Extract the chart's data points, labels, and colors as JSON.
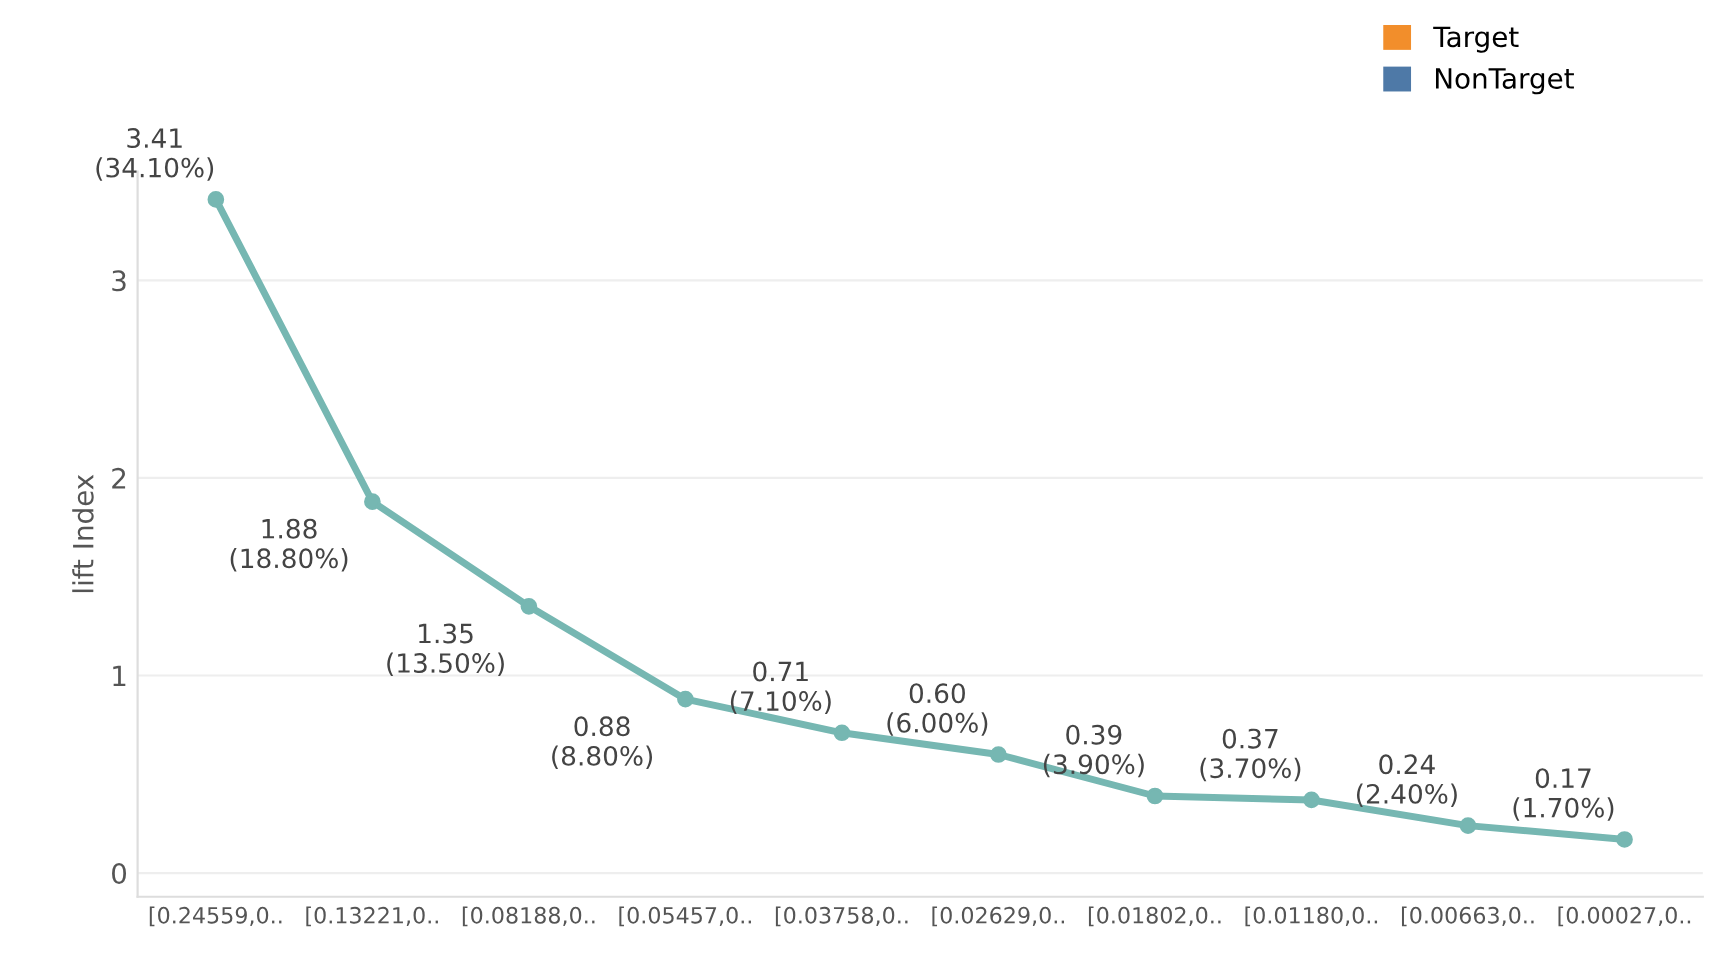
{
  "chart_data": {
    "type": "line",
    "ylabel": "lift Index",
    "categories": [
      "[0.24559,0..",
      "[0.13221,0..",
      "[0.08188,0..",
      "[0.05457,0..",
      "[0.03758,0..",
      "[0.02629,0..",
      "[0.01802,0..",
      "[0.01180,0..",
      "[0.00663,0..",
      "[0.00027,0.."
    ],
    "series": [
      {
        "color": "#76b7b2",
        "values": [
          3.41,
          1.88,
          1.35,
          0.88,
          0.71,
          0.6,
          0.39,
          0.37,
          0.24,
          0.17
        ],
        "value_labels": [
          "3.41\n(34.10%)",
          "1.88\n(18.80%)",
          "1.35\n(13.50%)",
          "0.88\n(8.80%)",
          "0.71\n(7.10%)",
          "0.60\n(6.00%)",
          "0.39\n(3.90%)",
          "0.37\n(3.70%)",
          "0.24\n(2.40%)",
          "0.17\n(1.70%)"
        ]
      },
      {
        "name": "Target",
        "color": "#f28e2b",
        "values": [
          null,
          null,
          null,
          null,
          null,
          null,
          null,
          null,
          null,
          null
        ]
      },
      {
        "name": "NonTarget",
        "color": "#4e79a7",
        "values": [
          null,
          null,
          null,
          null,
          null,
          null,
          null,
          null,
          null,
          null
        ]
      }
    ],
    "ylim": [
      -0.12,
      3.55
    ],
    "yticks": [
      0,
      1,
      2,
      3
    ],
    "grid": "y",
    "legend": "top right",
    "marker": "circle",
    "line_style": "solid"
  }
}
